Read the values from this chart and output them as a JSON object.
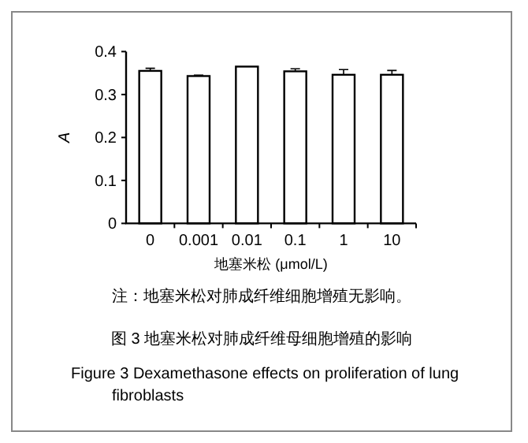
{
  "chart_data": {
    "type": "bar",
    "categories": [
      "0",
      "0.001",
      "0.01",
      "0.1",
      "1",
      "10"
    ],
    "values": [
      0.355,
      0.343,
      0.365,
      0.354,
      0.346,
      0.346
    ],
    "errors": [
      0.006,
      0.002,
      null,
      0.006,
      0.012,
      0.01
    ],
    "color": "#ffffff",
    "ylim": [
      0,
      0.4
    ],
    "yticks": [
      0,
      0.1,
      0.2,
      0.3,
      0.4
    ],
    "ylabel": "A",
    "xlabel": "地塞米松 (μmol/L)",
    "annotations": [
      "注：地塞米松对肺成纤维细胞增殖无影响。",
      "图 3   地塞米松对肺成纤维母细胞增殖的影响",
      "Figure 3   Dexamethasone effects on proliferation of lung fibroblasts"
    ]
  }
}
